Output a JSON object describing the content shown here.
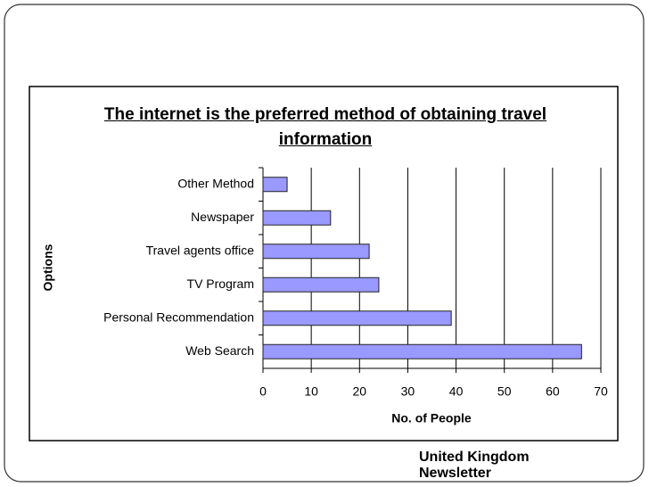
{
  "chart_data": {
    "type": "bar",
    "orientation": "horizontal",
    "title": "The internet is the preferred method of obtaining travel information",
    "categories": [
      "Other Method",
      "Newspaper",
      "Travel agents office",
      "TV Program",
      "Personal Recommendation",
      "Web Search"
    ],
    "values": [
      5,
      14,
      22,
      24,
      39,
      66
    ],
    "color": "#9999ff",
    "xlim": [
      0,
      70
    ],
    "xticks": [
      0,
      10,
      20,
      30,
      40,
      50,
      60,
      70
    ],
    "xlabel": "No. of People",
    "ylabel": "Options",
    "grid": true,
    "annotation": "United Kingdom Newsletter"
  }
}
